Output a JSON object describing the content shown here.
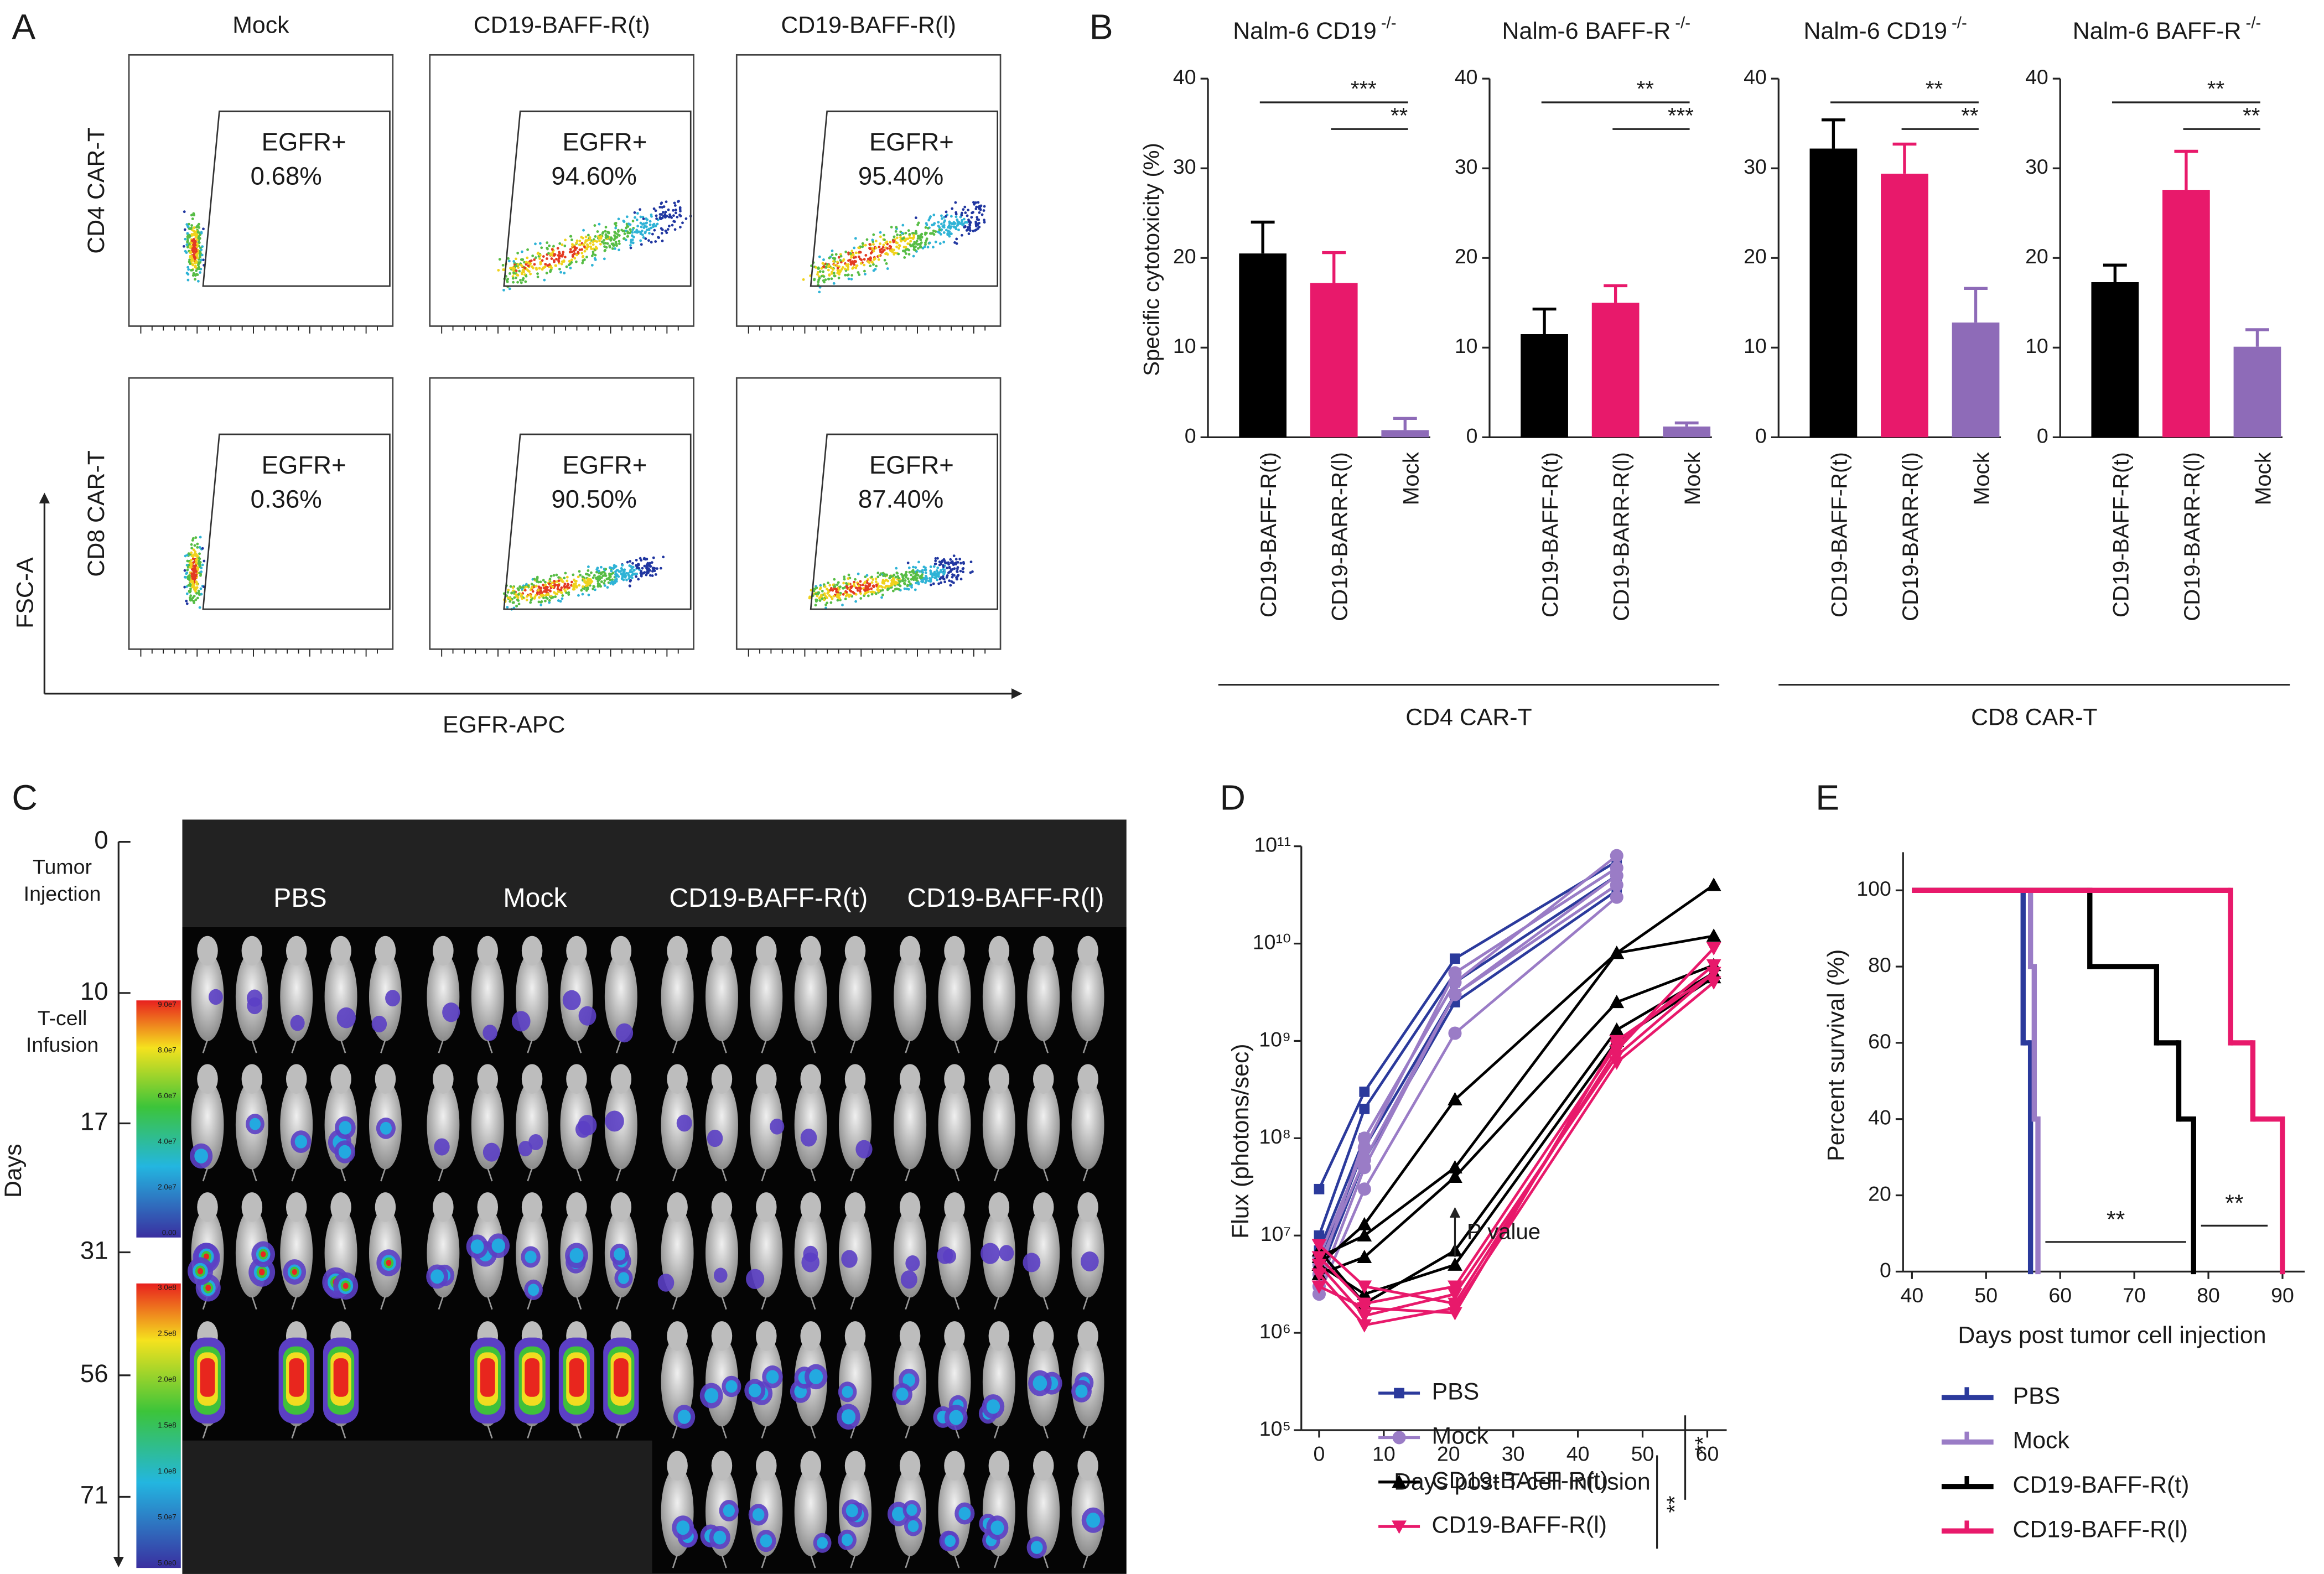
{
  "panel_labels": [
    "A",
    "B",
    "C",
    "D",
    "E"
  ],
  "flow": {
    "columns": [
      "Mock",
      "CD19-BAFF-R(t)",
      "CD19-BAFF-R(l)"
    ],
    "rows": [
      "CD4 CAR-T",
      "CD8 CAR-T"
    ],
    "gate_label": "EGFR+",
    "percentages": [
      [
        "0.68%",
        "94.60%",
        "95.40%"
      ],
      [
        "0.36%",
        "90.50%",
        "87.40%"
      ]
    ],
    "y_label": "FSC-A",
    "x_label": "EGFR-APC"
  },
  "imaging": {
    "columns": [
      "PBS",
      "Mock",
      "CD19-BAFF-R(t)",
      "CD19-BAFF-R(l)"
    ],
    "timepoints": [
      {
        "day": "0",
        "note": [
          "Tumor",
          "Injection"
        ]
      },
      {
        "day": "10",
        "note": [
          "T-cell",
          "Infusion"
        ]
      },
      {
        "day": "17"
      },
      {
        "day": "31"
      },
      {
        "day": "56"
      },
      {
        "day": "71"
      }
    ],
    "axis_label": "Days",
    "colorbars": [
      [
        "9.0e7",
        "8.0e7",
        "6.0e7",
        "4.0e7",
        "2.0e7",
        "0.00"
      ],
      [
        "3.0e8",
        "2.5e8",
        "2.0e8",
        "1.5e8",
        "1.0e8",
        "5.0e7",
        "5.0e0"
      ]
    ]
  },
  "chart_data": [
    {
      "type": "bar",
      "title": "Nalm-6 CD19",
      "title_superscript": "-/-",
      "y_label": "Specific cytotoxicity (%)",
      "categories": [
        "CD19-BAFF-R(t)",
        "CD19-BARR-R(l)",
        "Mock"
      ],
      "values": [
        20.5,
        17.2,
        0.8
      ],
      "errors": [
        3.5,
        3.4,
        1.3
      ],
      "colors": [
        "#000000",
        "#e8196b",
        "#8e6bb8"
      ],
      "ylim": [
        0,
        40
      ],
      "yticks": [
        0,
        10,
        20,
        30,
        40
      ],
      "significance": [
        "***",
        "**"
      ]
    },
    {
      "type": "bar",
      "title": "Nalm-6 BAFF-R",
      "title_superscript": "-/-",
      "categories": [
        "CD19-BAFF-R(t)",
        "CD19-BARR-R(l)",
        "Mock"
      ],
      "values": [
        11.5,
        15,
        1.2
      ],
      "errors": [
        2.8,
        1.9,
        0.4
      ],
      "colors": [
        "#000000",
        "#e8196b",
        "#8e6bb8"
      ],
      "ylim": [
        0,
        40
      ],
      "yticks": [
        0,
        10,
        20,
        30,
        40
      ],
      "significance": [
        "**",
        "***"
      ]
    },
    {
      "type": "bar",
      "title": "Nalm-6 CD19",
      "title_superscript": "-/-",
      "categories": [
        "CD19-BAFF-R(t)",
        "CD19-BARR-R(l)",
        "Mock"
      ],
      "values": [
        32.2,
        29.4,
        12.8
      ],
      "errors": [
        3.2,
        3.3,
        3.8
      ],
      "colors": [
        "#000000",
        "#e8196b",
        "#8e6bb8"
      ],
      "ylim": [
        0,
        40
      ],
      "yticks": [
        0,
        10,
        20,
        30,
        40
      ],
      "significance": [
        "**",
        "**"
      ]
    },
    {
      "type": "bar",
      "title": "Nalm-6 BAFF-R",
      "title_superscript": "-/-",
      "categories": [
        "CD19-BAFF-R(t)",
        "CD19-BARR-R(l)",
        "Mock"
      ],
      "values": [
        17.3,
        27.6,
        10.1
      ],
      "errors": [
        1.9,
        4.3,
        1.9
      ],
      "colors": [
        "#000000",
        "#e8196b",
        "#8e6bb8"
      ],
      "ylim": [
        0,
        40
      ],
      "yticks": [
        0,
        10,
        20,
        30,
        40
      ],
      "significance": [
        "**",
        "**"
      ]
    },
    {
      "type": "line",
      "log_y": true,
      "x_label": "Days post T-cell infusion",
      "y_label": "Flux (photons/sec)",
      "x": [
        0,
        7,
        21,
        46,
        61
      ],
      "xlim": [
        0,
        63
      ],
      "xticks": [
        0,
        10,
        20,
        30,
        40,
        50,
        60
      ],
      "ylim": [
        100000,
        100000000000
      ],
      "yticks": [
        {
          "value": 100000,
          "label": "10⁵"
        },
        {
          "value": 1000000,
          "label": "10⁶"
        },
        {
          "value": 10000000,
          "label": "10⁷"
        },
        {
          "value": 100000000,
          "label": "10⁸"
        },
        {
          "value": 1000000000,
          "label": "10⁹"
        },
        {
          "value": 10000000000,
          "label": "10¹⁰"
        },
        {
          "value": 100000000000,
          "label": "10¹¹"
        }
      ],
      "annotation": {
        "text": "P value",
        "x": 21
      },
      "significance": [
        "**",
        "**"
      ],
      "series": [
        {
          "name": "PBS",
          "color": "#2b3a9c",
          "marker": "square",
          "values": [
            [
              30000000,
              300000000,
              7000000000,
              70000000000,
              null
            ],
            [
              10000000,
              200000000,
              5000000000,
              60000000000,
              null
            ],
            [
              7000000,
              100000000,
              4000000000,
              50000000000,
              null
            ],
            [
              5000000,
              80000000,
              3000000000,
              40000000000,
              null
            ],
            [
              4000000,
              60000000,
              2500000000,
              35000000000,
              null
            ]
          ]
        },
        {
          "name": "Mock",
          "color": "#9a7cc6",
          "marker": "circle",
          "values": [
            [
              2500000,
              30000000,
              1200000000,
              30000000000,
              null
            ],
            [
              5000000,
              60000000,
              3000000000,
              50000000000,
              null
            ],
            [
              4000000,
              100000000,
              4000000000,
              80000000000,
              null
            ],
            [
              3000000,
              50000000,
              3000000000,
              40000000000,
              null
            ],
            [
              6000000,
              80000000,
              5000000000,
              60000000000,
              null
            ]
          ]
        },
        {
          "name": "CD19-BAFF-R(t)",
          "color": "#000000",
          "marker": "triangle",
          "values": [
            [
              5000000,
              13000000,
              250000000,
              8000000000,
              40000000000
            ],
            [
              6000000,
              10000000,
              50000000,
              8000000000,
              12000000000
            ],
            [
              4000000,
              6000000,
              40000000,
              2500000000,
              6000000000
            ],
            [
              7000000,
              2000000,
              7000000,
              1300000000,
              5000000000
            ],
            [
              5000000,
              2500000,
              5000000,
              1000000000,
              4500000000
            ]
          ]
        },
        {
          "name": "CD19-BAFF-R(l)",
          "color": "#e8196b",
          "marker": "triangle-down",
          "values": [
            [
              4000000,
              1200000,
              1800000,
              600000000,
              4000000000
            ],
            [
              5000000,
              1500000,
              2500000,
              700000000,
              5000000000
            ],
            [
              6000000,
              2000000,
              3000000,
              900000000,
              6000000000
            ],
            [
              8000000,
              3000000,
              2000000,
              800000000,
              9000000000
            ],
            [
              3000000,
              1800000,
              1600000,
              1000000000,
              5000000000
            ]
          ]
        }
      ]
    },
    {
      "type": "step",
      "x_label": "Days post tumor cell injection",
      "y_label": "Percent survival (%)",
      "xlim": [
        40,
        93
      ],
      "xticks": [
        40,
        50,
        60,
        70,
        80,
        90
      ],
      "ylim": [
        0,
        110
      ],
      "yticks": [
        0,
        20,
        40,
        60,
        80,
        100
      ],
      "significance": [
        "**",
        "**"
      ],
      "series": [
        {
          "name": "PBS",
          "color": "#2b3a9c",
          "x": [
            40,
            55,
            56
          ],
          "values": [
            100,
            60,
            0
          ]
        },
        {
          "name": "Mock",
          "color": "#9a7cc6",
          "x": [
            40,
            56,
            56.5,
            57
          ],
          "values": [
            100,
            80,
            40,
            0
          ]
        },
        {
          "name": "CD19-BAFF-R(t)",
          "color": "#000000",
          "x": [
            40,
            64,
            73,
            76,
            78
          ],
          "values": [
            100,
            80,
            60,
            40,
            0
          ]
        },
        {
          "name": "CD19-BAFF-R(l)",
          "color": "#e8196b",
          "x": [
            40,
            83,
            86,
            90
          ],
          "values": [
            100,
            60,
            40,
            0
          ]
        }
      ]
    }
  ],
  "bar_groups": [
    "CD4 CAR-T",
    "CD8 CAR-T"
  ]
}
